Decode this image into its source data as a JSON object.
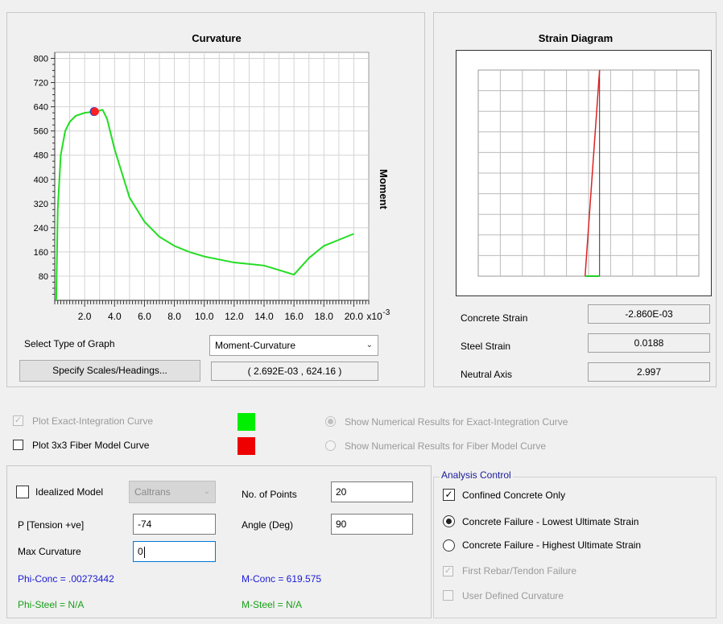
{
  "curvature": {
    "title": "Curvature",
    "ylabel": "Moment",
    "x_multiplier": "x10",
    "x_exponent": "-3",
    "y_ticks": [
      "800",
      "720",
      "640",
      "560",
      "480",
      "400",
      "320",
      "240",
      "160",
      "80"
    ],
    "x_ticks": [
      "2.0",
      "4.0",
      "6.0",
      "8.0",
      "10.0",
      "12.0",
      "14.0",
      "16.0",
      "18.0",
      "20.0"
    ]
  },
  "chart_data": [
    {
      "type": "line",
      "title": "Curvature",
      "xlabel": "",
      "ylabel": "Moment",
      "xlim": [
        0,
        21.0
      ],
      "ylim": [
        0,
        820
      ],
      "grid": true,
      "series": [
        {
          "color": "#22dd22",
          "x": [
            0.1,
            0.2,
            0.4,
            0.7,
            1.0,
            1.4,
            2.0,
            2.7,
            3.2,
            3.5,
            4.0,
            4.5,
            5.0,
            6.0,
            7.0,
            8.0,
            9.0,
            10.0,
            11.0,
            12.0,
            13.0,
            14.0,
            15.0,
            16.0,
            17.0,
            18.0,
            19.0,
            20.0
          ],
          "y": [
            0,
            300,
            480,
            560,
            590,
            610,
            620,
            624,
            630,
            600,
            500,
            420,
            340,
            260,
            210,
            180,
            160,
            145,
            135,
            125,
            120,
            115,
            100,
            85,
            140,
            180,
            200,
            220
          ]
        }
      ],
      "marker": {
        "x": 2.692,
        "y": 624.16,
        "color": "#ff2020"
      }
    },
    {
      "type": "line",
      "title": "Strain Diagram",
      "grid": true,
      "series": [
        {
          "name": "",
          "color": "#dd2222",
          "points": "linear strain profile"
        }
      ]
    }
  ],
  "strain": {
    "title": "Strain Diagram",
    "concrete_label": "Concrete Strain",
    "concrete_value": "-2.860E-03",
    "steel_label": "Steel Strain",
    "steel_value": "0.0188",
    "na_label": "Neutral Axis",
    "na_value": "2.997"
  },
  "graph_controls": {
    "select_label": "Select Type of Graph",
    "select_value": "Moment-Curvature",
    "scales_button": "Specify Scales/Headings...",
    "coords": "( 2.692E-03 , 624.16 )"
  },
  "plot_options": {
    "exact_label": "Plot Exact-Integration Curve",
    "fiber_label": "Plot 3x3 Fiber Model Curve",
    "exact_color": "#00ee00",
    "fiber_color": "#ee0000",
    "show_exact": "Show Numerical Results for Exact-Integration Curve",
    "show_fiber": "Show Numerical Results for Fiber Model Curve"
  },
  "model": {
    "idealized_label": "Idealized Model",
    "idealized_select": "Caltrans",
    "p_label": "P [Tension +ve]",
    "p_value": "-74",
    "max_curv_label": "Max Curvature",
    "max_curv_value": "0",
    "points_label": "No. of Points",
    "points_value": "20",
    "angle_label": "Angle (Deg)",
    "angle_value": "90",
    "phi_conc": "Phi-Conc = .00273442",
    "phi_steel": "Phi-Steel = N/A",
    "m_conc": "M-Conc = 619.575",
    "m_steel": "M-Steel = N/A"
  },
  "analysis": {
    "title": "Analysis Control",
    "confined": "Confined Concrete Only",
    "lowest": "Concrete Failure - Lowest Ultimate Strain",
    "highest": "Concrete Failure - Highest Ultimate Strain",
    "rebar": "First Rebar/Tendon Failure",
    "user": "User Defined Curvature"
  }
}
